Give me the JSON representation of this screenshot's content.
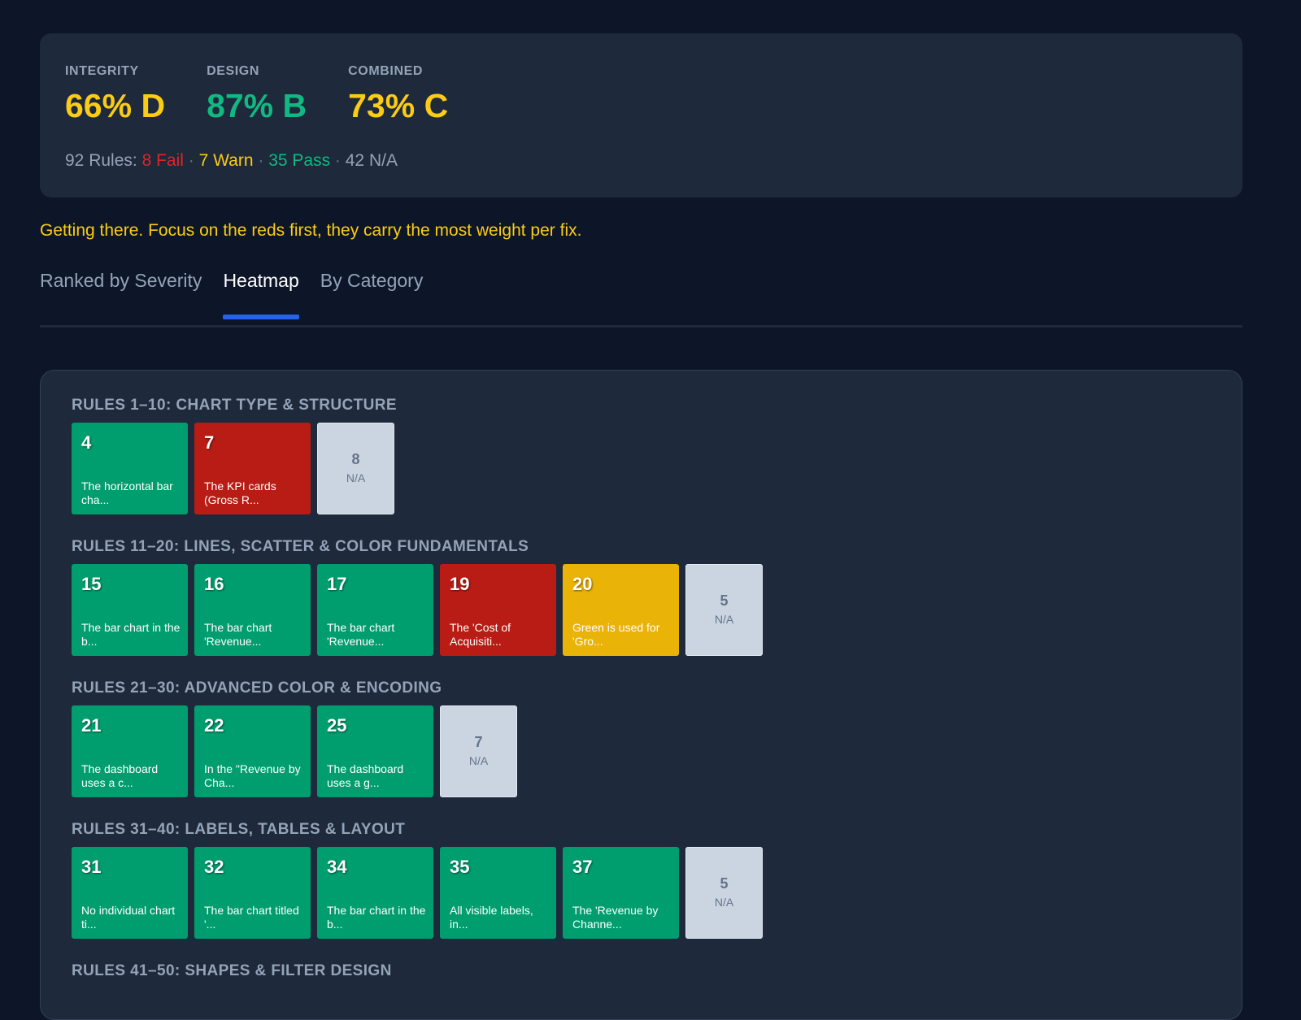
{
  "scores": {
    "integrity": {
      "label": "INTEGRITY",
      "value": "66% D",
      "color": "#facc15"
    },
    "design": {
      "label": "DESIGN",
      "value": "87% B",
      "color": "#10b981"
    },
    "combined": {
      "label": "COMBINED",
      "value": "73% C",
      "color": "#facc15"
    }
  },
  "summary": {
    "prefix": "92 Rules: ",
    "fail": "8 Fail",
    "warn": "7 Warn",
    "pass": "35 Pass",
    "na": "42 N/A",
    "separator": " · ",
    "colors": {
      "fail": "#dc2626",
      "warn": "#facc15",
      "pass": "#10b981",
      "na": "#94a3b8"
    }
  },
  "message": "Getting there. Focus on the reds first, they carry the most weight per fix.",
  "tabs": [
    {
      "label": "Ranked by Severity",
      "active": false
    },
    {
      "label": "Heatmap",
      "active": true
    },
    {
      "label": "By Category",
      "active": false
    }
  ],
  "heatmap": {
    "status_colors": {
      "pass": "#009e6e",
      "fail": "#b91c14",
      "warn": "#eab308",
      "na": "#cbd5e1"
    },
    "groups": [
      {
        "title": "RULES 1–10: CHART TYPE & STRUCTURE",
        "tiles": [
          {
            "num": "4",
            "status": "pass",
            "text": "The horizontal bar cha..."
          },
          {
            "num": "7",
            "status": "fail",
            "text": "The KPI cards (Gross R..."
          }
        ],
        "na": {
          "count": "8",
          "label": "N/A"
        }
      },
      {
        "title": "RULES 11–20: LINES, SCATTER & COLOR FUNDAMENTALS",
        "tiles": [
          {
            "num": "15",
            "status": "pass",
            "text": "The bar chart in the b..."
          },
          {
            "num": "16",
            "status": "pass",
            "text": "The bar chart 'Revenue..."
          },
          {
            "num": "17",
            "status": "pass",
            "text": "The bar chart 'Revenue..."
          },
          {
            "num": "19",
            "status": "fail",
            "text": "The 'Cost of Acquisiti..."
          },
          {
            "num": "20",
            "status": "warn",
            "text": "Green is used for 'Gro..."
          }
        ],
        "na": {
          "count": "5",
          "label": "N/A"
        }
      },
      {
        "title": "RULES 21–30: ADVANCED COLOR & ENCODING",
        "tiles": [
          {
            "num": "21",
            "status": "pass",
            "text": "The dashboard uses a c..."
          },
          {
            "num": "22",
            "status": "pass",
            "text": "In the \"Revenue by Cha..."
          },
          {
            "num": "25",
            "status": "pass",
            "text": "The dashboard uses a g..."
          }
        ],
        "na": {
          "count": "7",
          "label": "N/A"
        }
      },
      {
        "title": "RULES 31–40: LABELS, TABLES & LAYOUT",
        "tiles": [
          {
            "num": "31",
            "status": "pass",
            "text": "No individual chart ti..."
          },
          {
            "num": "32",
            "status": "pass",
            "text": "The bar chart titled '..."
          },
          {
            "num": "34",
            "status": "pass",
            "text": "The bar chart in the b..."
          },
          {
            "num": "35",
            "status": "pass",
            "text": "All visible labels, in..."
          },
          {
            "num": "37",
            "status": "pass",
            "text": "The 'Revenue by Channe..."
          }
        ],
        "na": {
          "count": "5",
          "label": "N/A"
        }
      },
      {
        "title": "RULES 41–50: SHAPES & FILTER DESIGN",
        "tiles": [],
        "na": null
      }
    ]
  }
}
